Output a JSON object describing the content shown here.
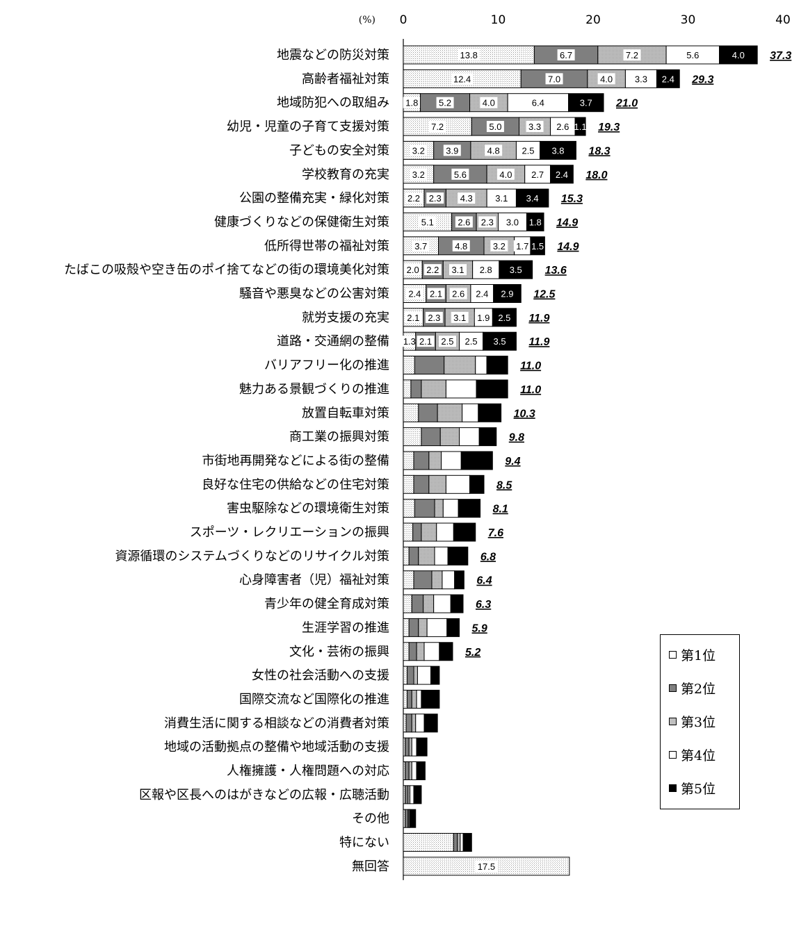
{
  "chart_data": {
    "type": "bar",
    "orientation": "horizontal",
    "stacked": true,
    "unit_label": "(%)",
    "xlim": [
      0,
      40
    ],
    "x_ticks": [
      "0",
      "10",
      "20",
      "30",
      "40"
    ],
    "series": [
      {
        "name": "第1位",
        "color": "#ffffff",
        "pattern": "stipple-light"
      },
      {
        "name": "第2位",
        "color": "#7f7f7f",
        "pattern": "solid"
      },
      {
        "name": "第3位",
        "color": "#bfbfbf",
        "pattern": "stipple"
      },
      {
        "name": "第4位",
        "color": "#ffffff",
        "pattern": "solid"
      },
      {
        "name": "第5位",
        "color": "#000000",
        "pattern": "solid"
      }
    ],
    "categories": [
      {
        "label": "地震などの防災対策",
        "total": "37.3",
        "values": [
          13.8,
          6.7,
          7.2,
          5.6,
          4.0
        ],
        "labels": [
          "13.8",
          "6.7",
          "7.2",
          "5.6",
          "4.0"
        ]
      },
      {
        "label": "高齢者福祉対策",
        "total": "29.3",
        "values": [
          12.4,
          7.0,
          4.0,
          3.3,
          2.4
        ],
        "labels": [
          "12.4",
          "7.0",
          "4.0",
          "3.3",
          "2.4"
        ]
      },
      {
        "label": "地域防犯への取組み",
        "total": "21.0",
        "values": [
          1.8,
          5.2,
          4.0,
          6.4,
          3.7
        ],
        "labels": [
          "1.8",
          "5.2",
          "4.0",
          "6.4",
          "3.7"
        ]
      },
      {
        "label": "幼児・児童の子育て支援対策",
        "total": "19.3",
        "values": [
          7.2,
          5.0,
          3.3,
          2.6,
          1.1
        ],
        "labels": [
          "7.2",
          "5.0",
          "3.3",
          "2.6",
          "1.1"
        ]
      },
      {
        "label": "子どもの安全対策",
        "total": "18.3",
        "values": [
          3.2,
          3.9,
          4.8,
          2.5,
          3.8
        ],
        "labels": [
          "3.2",
          "3.9",
          "4.8",
          "2.5",
          "3.8"
        ]
      },
      {
        "label": "学校教育の充実",
        "total": "18.0",
        "values": [
          3.2,
          5.6,
          4.0,
          2.7,
          2.4
        ],
        "labels": [
          "3.2",
          "5.6",
          "4.0",
          "2.7",
          "2.4"
        ]
      },
      {
        "label": "公園の整備充実・緑化対策",
        "total": "15.3",
        "values": [
          2.2,
          2.3,
          4.3,
          3.1,
          3.4
        ],
        "labels": [
          "2.2",
          "2.3",
          "4.3",
          "3.1",
          "3.4"
        ]
      },
      {
        "label": "健康づくりなどの保健衛生対策",
        "total": "14.9",
        "values": [
          5.1,
          2.6,
          2.3,
          3.0,
          1.8
        ],
        "labels": [
          "5.1",
          "2.6",
          "2.3",
          "3.0",
          "1.8"
        ]
      },
      {
        "label": "低所得世帯の福祉対策",
        "total": "14.9",
        "values": [
          3.7,
          4.8,
          3.2,
          1.7,
          1.5
        ],
        "labels": [
          "3.7",
          "4.8",
          "3.2",
          "1.7",
          "1.5"
        ]
      },
      {
        "label": "たばこの吸殻や空き缶のポイ捨てなどの街の環境美化対策",
        "total": "13.6",
        "values": [
          2.0,
          2.2,
          3.1,
          2.8,
          3.5
        ],
        "labels": [
          "2.0",
          "2.2",
          "3.1",
          "2.8",
          "3.5"
        ]
      },
      {
        "label": "騒音や悪臭などの公害対策",
        "total": "12.5",
        "values": [
          2.4,
          2.1,
          2.6,
          2.4,
          2.9
        ],
        "labels": [
          "2.4",
          "2.1",
          "2.6",
          "2.4",
          "2.9"
        ]
      },
      {
        "label": "就労支援の充実",
        "total": "11.9",
        "values": [
          2.1,
          2.3,
          3.1,
          1.9,
          2.5
        ],
        "labels": [
          "2.1",
          "2.3",
          "3.1",
          "1.9",
          "2.5"
        ]
      },
      {
        "label": "道路・交通網の整備",
        "total": "11.9",
        "values": [
          1.3,
          2.1,
          2.5,
          2.5,
          3.5
        ],
        "labels": [
          "1.3",
          "2.1",
          "2.5",
          "2.5",
          "3.5"
        ]
      },
      {
        "label": "バリアフリー化の推進",
        "total": "11.0",
        "values": [
          1.2,
          3.1,
          3.3,
          1.2,
          2.2
        ],
        "labels": [
          "",
          "",
          "",
          "",
          ""
        ]
      },
      {
        "label": "魅力ある景観づくりの推進",
        "total": "11.0",
        "values": [
          0.8,
          1.1,
          2.6,
          3.2,
          3.3
        ],
        "labels": [
          "",
          "",
          "",
          "",
          ""
        ]
      },
      {
        "label": "放置自転車対策",
        "total": "10.3",
        "values": [
          1.6,
          2.0,
          2.6,
          1.7,
          2.4
        ],
        "labels": [
          "",
          "",
          "",
          "",
          ""
        ]
      },
      {
        "label": "商工業の振興対策",
        "total": "9.8",
        "values": [
          1.9,
          2.0,
          2.0,
          2.1,
          1.8
        ],
        "labels": [
          "",
          "",
          "",
          "",
          ""
        ]
      },
      {
        "label": "市街地再開発などによる街の整備",
        "total": "9.4",
        "values": [
          1.1,
          1.6,
          1.3,
          2.1,
          3.3
        ],
        "labels": [
          "",
          "",
          "",
          "",
          ""
        ]
      },
      {
        "label": "良好な住宅の供給などの住宅対策",
        "total": "8.5",
        "values": [
          1.1,
          1.6,
          1.8,
          2.5,
          1.5
        ],
        "labels": [
          "",
          "",
          "",
          "",
          ""
        ]
      },
      {
        "label": "害虫駆除などの環境衛生対策",
        "total": "8.1",
        "values": [
          1.2,
          2.1,
          0.9,
          1.6,
          2.3
        ],
        "labels": [
          "",
          "",
          "",
          "",
          ""
        ]
      },
      {
        "label": "スポーツ・レクリエーションの振興",
        "total": "7.6",
        "values": [
          1.0,
          0.9,
          1.6,
          1.8,
          2.3
        ],
        "labels": [
          "",
          "",
          "",
          "",
          ""
        ]
      },
      {
        "label": "資源循環のシステムづくりなどのリサイクル対策",
        "total": "6.8",
        "values": [
          0.6,
          1.0,
          1.7,
          1.4,
          2.1
        ],
        "labels": [
          "",
          "",
          "",
          "",
          ""
        ]
      },
      {
        "label": "心身障害者（児）福祉対策",
        "total": "6.4",
        "values": [
          1.1,
          1.9,
          1.1,
          1.3,
          1.0
        ],
        "labels": [
          "",
          "",
          "",
          "",
          ""
        ]
      },
      {
        "label": "青少年の健全育成対策",
        "total": "6.3",
        "values": [
          0.9,
          1.2,
          1.1,
          1.8,
          1.3
        ],
        "labels": [
          "",
          "",
          "",
          "",
          ""
        ]
      },
      {
        "label": "生涯学習の推進",
        "total": "5.9",
        "values": [
          0.6,
          1.0,
          0.9,
          2.1,
          1.3
        ],
        "labels": [
          "",
          "",
          "",
          "",
          ""
        ]
      },
      {
        "label": "文化・芸術の振興",
        "total": "5.2",
        "values": [
          0.6,
          0.8,
          0.8,
          1.6,
          1.4
        ],
        "labels": [
          "",
          "",
          "",
          "",
          ""
        ]
      },
      {
        "label": "女性の社会活動への支援",
        "total": "",
        "values": [
          0.4,
          0.7,
          0.4,
          1.4,
          0.9
        ],
        "labels": [
          "",
          "",
          "",
          "",
          ""
        ]
      },
      {
        "label": "国際交流など国際化の推進",
        "total": "",
        "values": [
          0.4,
          0.5,
          0.5,
          0.5,
          1.9
        ],
        "labels": [
          "",
          "",
          "",
          "",
          ""
        ]
      },
      {
        "label": "消費生活に関する相談などの消費者対策",
        "total": "",
        "values": [
          0.3,
          0.6,
          0.4,
          0.9,
          1.4
        ],
        "labels": [
          "",
          "",
          "",
          "",
          ""
        ]
      },
      {
        "label": "地域の活動拠点の整備や地域活動の支援",
        "total": "",
        "values": [
          0.2,
          0.4,
          0.3,
          0.5,
          1.1
        ],
        "labels": [
          "",
          "",
          "",
          "",
          ""
        ]
      },
      {
        "label": "人権擁護・人権問題への対応",
        "total": "",
        "values": [
          0.2,
          0.4,
          0.3,
          0.5,
          0.9
        ],
        "labels": [
          "",
          "",
          "",
          "",
          ""
        ]
      },
      {
        "label": "区報や区長へのはがきなどの広報・広聴活動",
        "total": "",
        "values": [
          0.2,
          0.3,
          0.2,
          0.4,
          0.8
        ],
        "labels": [
          "",
          "",
          "",
          "",
          ""
        ]
      },
      {
        "label": "その他",
        "total": "",
        "values": [
          0.2,
          0.3,
          0.1,
          0.1,
          0.6
        ],
        "labels": [
          "",
          "",
          "",
          "",
          ""
        ]
      },
      {
        "label": "特にない",
        "total": "",
        "values": [
          5.3,
          0.4,
          0.3,
          0.3,
          0.9
        ],
        "labels": [
          "",
          "",
          "",
          "",
          ""
        ]
      },
      {
        "label": "無回答",
        "total": "",
        "values": [
          17.5,
          0,
          0,
          0,
          0
        ],
        "labels": [
          "17.5",
          "",
          "",
          "",
          ""
        ]
      }
    ]
  }
}
